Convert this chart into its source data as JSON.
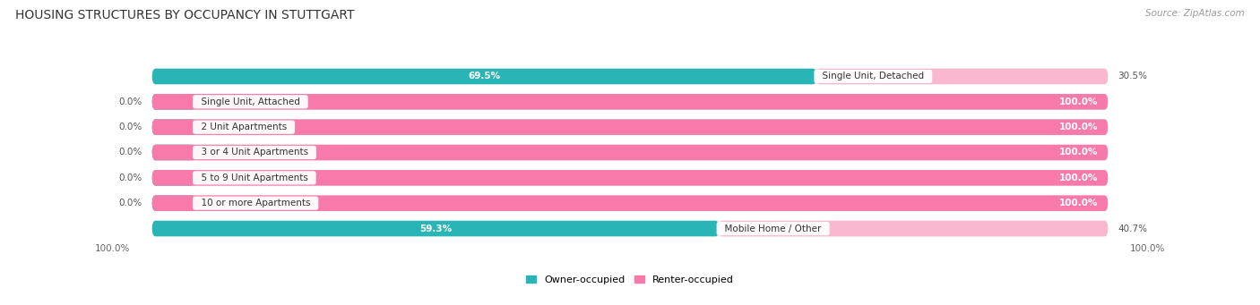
{
  "title": "HOUSING STRUCTURES BY OCCUPANCY IN STUTTGART",
  "source": "Source: ZipAtlas.com",
  "categories": [
    "Single Unit, Detached",
    "Single Unit, Attached",
    "2 Unit Apartments",
    "3 or 4 Unit Apartments",
    "5 to 9 Unit Apartments",
    "10 or more Apartments",
    "Mobile Home / Other"
  ],
  "owner_pct": [
    69.5,
    0.0,
    0.0,
    0.0,
    0.0,
    0.0,
    59.3
  ],
  "renter_pct": [
    30.5,
    100.0,
    100.0,
    100.0,
    100.0,
    100.0,
    40.7
  ],
  "owner_color": "#29b5b5",
  "renter_color": "#f87aaa",
  "renter_color_light": "#f9b8cf",
  "bar_bg_color": "#e8e8ec",
  "fig_bg_color": "#ffffff",
  "title_fontsize": 10,
  "source_fontsize": 7.5,
  "bar_label_fontsize": 7.5,
  "pct_label_fontsize": 7.5,
  "bar_height": 0.62,
  "bar_gap": 0.38,
  "x_min": 0,
  "x_max": 100,
  "owner_label_color": "#ffffff",
  "renter_label_color": "#ffffff",
  "outside_label_color": "#555555",
  "legend_label_owner": "Owner-occupied",
  "legend_label_renter": "Renter-occupied"
}
